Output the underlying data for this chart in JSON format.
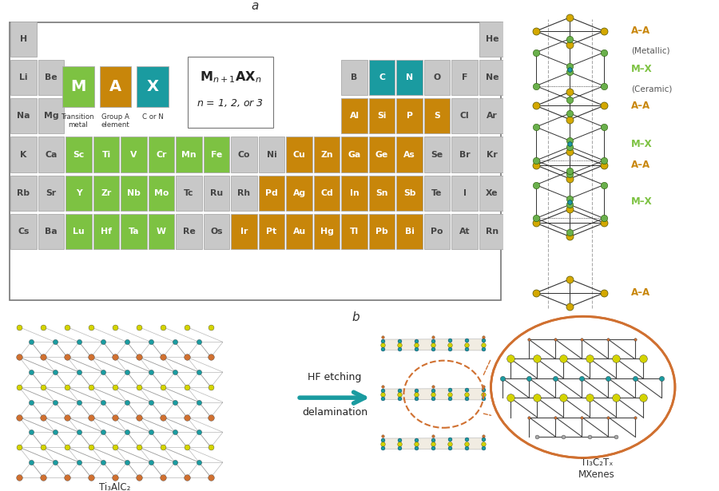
{
  "bg_color": "#ffffff",
  "gray_color": "#c8c8c8",
  "green_color": "#7dc242",
  "orange_color": "#c8860a",
  "teal_color": "#1a9ba0",
  "gold_color": "#d4a800",
  "elements": [
    [
      "H",
      "",
      "",
      "",
      "",
      "",
      "",
      "",
      "",
      "",
      "",
      "",
      "",
      "",
      "",
      "",
      "",
      "He"
    ],
    [
      "Li",
      "Be",
      "",
      "",
      "",
      "",
      "",
      "",
      "",
      "",
      "",
      "",
      "B",
      "C",
      "N",
      "O",
      "F",
      "Ne"
    ],
    [
      "Na",
      "Mg",
      "",
      "",
      "",
      "",
      "",
      "",
      "",
      "",
      "",
      "",
      "Al",
      "Si",
      "P",
      "S",
      "Cl",
      "Ar"
    ],
    [
      "K",
      "Ca",
      "Sc",
      "Ti",
      "V",
      "Cr",
      "Mn",
      "Fe",
      "Co",
      "Ni",
      "Cu",
      "Zn",
      "Ga",
      "Ge",
      "As",
      "Se",
      "Br",
      "Kr"
    ],
    [
      "Rb",
      "Sr",
      "Y",
      "Zr",
      "Nb",
      "Mo",
      "Tc",
      "Ru",
      "Rh",
      "Pd",
      "Ag",
      "Cd",
      "In",
      "Sn",
      "Sb",
      "Te",
      "I",
      "Xe"
    ],
    [
      "Cs",
      "Ba",
      "Lu",
      "Hf",
      "Ta",
      "W",
      "Re",
      "Os",
      "Ir",
      "Pt",
      "Au",
      "Hg",
      "Tl",
      "Pb",
      "Bi",
      "Po",
      "At",
      "Rn"
    ]
  ],
  "green_elements": [
    "Sc",
    "Ti",
    "V",
    "Cr",
    "Mn",
    "Fe",
    "Y",
    "Zr",
    "Nb",
    "Mo",
    "Lu",
    "Hf",
    "Ta",
    "W"
  ],
  "orange_elements": [
    "Cu",
    "Zn",
    "Ga",
    "Ge",
    "As",
    "Pd",
    "Ag",
    "Cd",
    "In",
    "Sn",
    "Sb",
    "Ir",
    "Pt",
    "Au",
    "Hg",
    "Tl",
    "Pb",
    "Bi",
    "Al",
    "Si",
    "P",
    "S"
  ],
  "teal_elements": [
    "C",
    "N"
  ],
  "crystal_layers": [
    {
      "type": "AA",
      "label": "A–A",
      "sublabel": "(Metallic)",
      "label_color": "#c8860a",
      "sublabel_color": "#555555"
    },
    {
      "type": "MX",
      "label": "M–X",
      "sublabel": "(Ceramic)",
      "label_color": "#7dc242",
      "sublabel_color": "#555555"
    },
    {
      "type": "AA",
      "label": "A–A",
      "sublabel": "",
      "label_color": "#c8860a",
      "sublabel_color": "#555555"
    },
    {
      "type": "MX",
      "label": "M–X",
      "sublabel": "",
      "label_color": "#7dc242",
      "sublabel_color": "#555555"
    },
    {
      "type": "AA",
      "label": "A–A",
      "sublabel": "",
      "label_color": "#c8860a",
      "sublabel_color": "#555555"
    },
    {
      "type": "MX",
      "label": "M–X",
      "sublabel": "",
      "label_color": "#7dc242",
      "sublabel_color": "#555555"
    },
    {
      "type": "AA",
      "label": "A–A",
      "sublabel": "",
      "label_color": "#c8860a",
      "sublabel_color": "#555555"
    }
  ]
}
